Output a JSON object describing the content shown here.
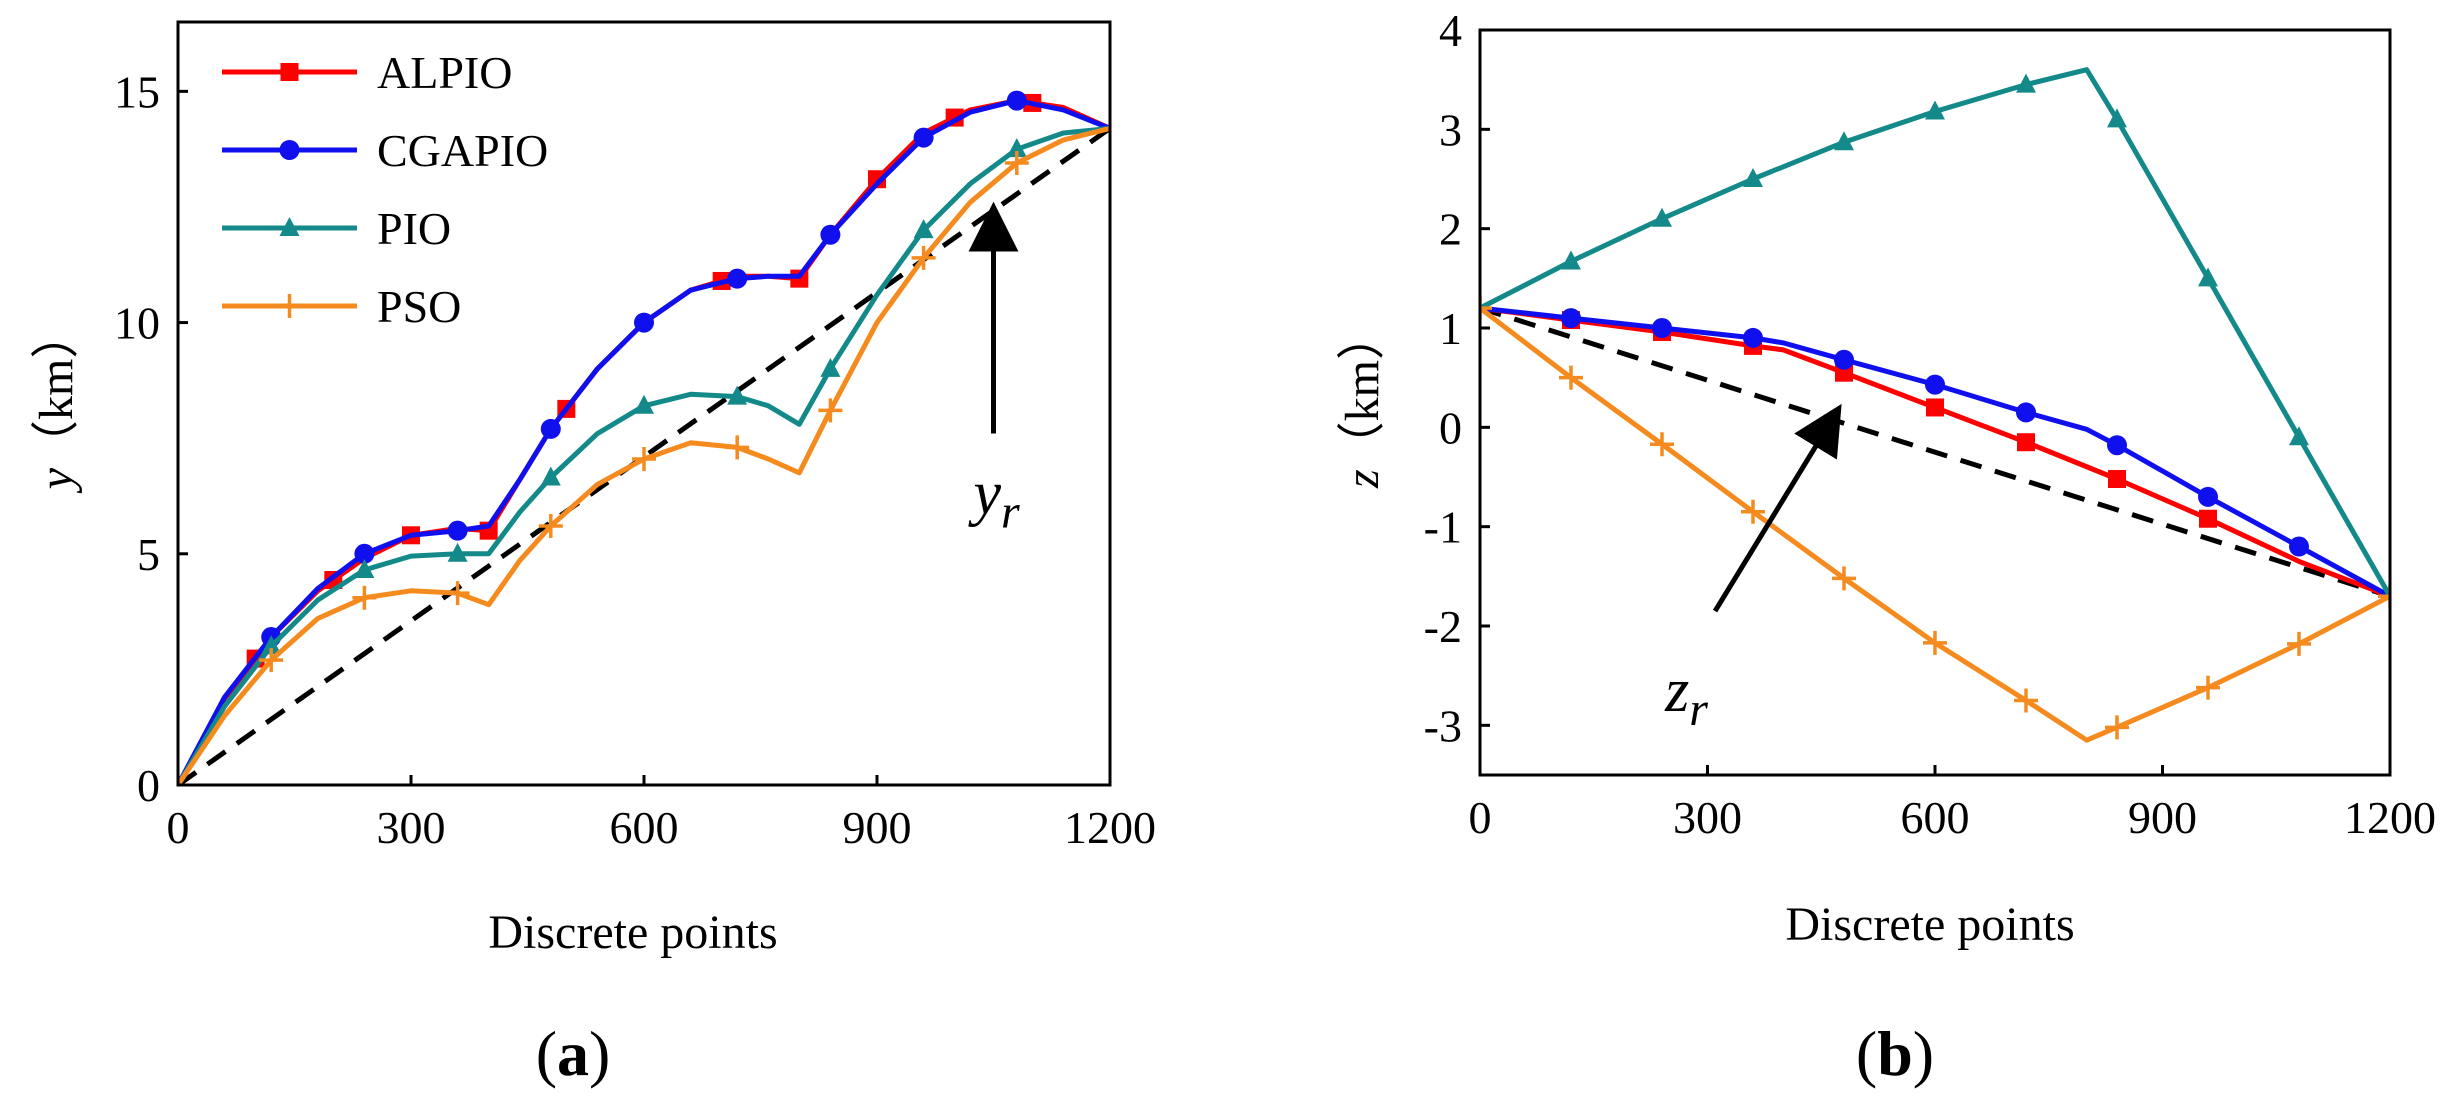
{
  "colors": {
    "ALPIO": "#ff0000",
    "CGAPIO": "#1010ee",
    "PIO": "#13898a",
    "PSO": "#f58b1f",
    "ref": "#000000"
  },
  "chart_data": [
    {
      "id": "a",
      "type": "line",
      "caption_prefix": "(",
      "caption_letter": "a",
      "caption_suffix": ")",
      "xlabel": "Discrete points",
      "ylabel_var": "y",
      "ylabel_unit": "（km）",
      "xlim": [
        0,
        1200
      ],
      "ylim": [
        0,
        16.5
      ],
      "xticks": [
        0,
        300,
        600,
        900,
        1200
      ],
      "yticks": [
        0,
        5,
        10,
        15
      ],
      "legend": {
        "location": "top-left",
        "entries": [
          "ALPIO",
          "CGAPIO",
          "PIO",
          "PSO"
        ]
      },
      "annotation": {
        "var": "y",
        "sub": "r",
        "arrow_from": [
          1050,
          7.6
        ],
        "arrow_to": [
          1050,
          12.4
        ]
      },
      "reference": {
        "name": "y_r",
        "x": [
          0,
          1200
        ],
        "y": [
          0,
          14.2
        ]
      },
      "series": [
        {
          "name": "ALPIO",
          "marker": "square",
          "x": [
            0,
            60,
            120,
            180,
            240,
            300,
            360,
            400,
            440,
            480,
            540,
            600,
            660,
            720,
            760,
            800,
            840,
            900,
            960,
            1020,
            1080,
            1140,
            1200
          ],
          "y": [
            0,
            1.8,
            3.2,
            4.2,
            4.9,
            5.4,
            5.55,
            5.5,
            6.6,
            7.7,
            9.0,
            10.0,
            10.7,
            11.0,
            11.0,
            10.95,
            11.9,
            13.1,
            14.1,
            14.6,
            14.8,
            14.65,
            14.2
          ],
          "marker_x": [
            100,
            200,
            300,
            400,
            500,
            700,
            800,
            900,
            1000,
            1100
          ]
        },
        {
          "name": "CGAPIO",
          "marker": "circle",
          "x": [
            0,
            60,
            120,
            180,
            240,
            300,
            360,
            400,
            440,
            480,
            540,
            600,
            660,
            720,
            760,
            800,
            840,
            900,
            960,
            1020,
            1080,
            1140,
            1200
          ],
          "y": [
            0,
            1.9,
            3.2,
            4.25,
            5.0,
            5.4,
            5.5,
            5.6,
            6.6,
            7.7,
            9.0,
            10.0,
            10.7,
            10.95,
            11.0,
            11.0,
            11.9,
            13.0,
            14.0,
            14.55,
            14.8,
            14.6,
            14.2
          ],
          "marker_x": [
            120,
            240,
            360,
            480,
            600,
            720,
            840,
            960,
            1080
          ]
        },
        {
          "name": "PIO",
          "marker": "triangle",
          "x": [
            0,
            60,
            120,
            180,
            240,
            300,
            360,
            400,
            440,
            480,
            540,
            600,
            660,
            720,
            760,
            800,
            840,
            900,
            960,
            1020,
            1080,
            1140,
            1200
          ],
          "y": [
            0,
            1.7,
            3.0,
            4.0,
            4.65,
            4.95,
            5.0,
            5.0,
            5.9,
            6.65,
            7.6,
            8.2,
            8.45,
            8.4,
            8.2,
            7.8,
            9.0,
            10.6,
            12.0,
            13.0,
            13.75,
            14.1,
            14.2
          ],
          "marker_x": [
            120,
            240,
            360,
            480,
            600,
            720,
            840,
            960,
            1080
          ]
        },
        {
          "name": "PSO",
          "marker": "plus",
          "x": [
            0,
            60,
            120,
            180,
            240,
            300,
            360,
            400,
            440,
            480,
            540,
            600,
            660,
            720,
            760,
            800,
            840,
            900,
            960,
            1020,
            1080,
            1140,
            1200
          ],
          "y": [
            0,
            1.5,
            2.7,
            3.6,
            4.05,
            4.2,
            4.15,
            3.9,
            4.85,
            5.6,
            6.5,
            7.05,
            7.4,
            7.3,
            7.05,
            6.75,
            8.1,
            10.0,
            11.4,
            12.6,
            13.45,
            13.95,
            14.2
          ],
          "marker_x": [
            120,
            240,
            360,
            480,
            600,
            720,
            840,
            960,
            1080
          ]
        }
      ]
    },
    {
      "id": "b",
      "type": "line",
      "caption_prefix": "(",
      "caption_letter": "b",
      "caption_suffix": ")",
      "xlabel": "Discrete points",
      "ylabel_var": "z",
      "ylabel_unit": "（km）",
      "xlim": [
        0,
        1200
      ],
      "ylim": [
        -3.5,
        4
      ],
      "xticks": [
        0,
        300,
        600,
        900,
        1200
      ],
      "yticks": [
        -3,
        -2,
        -1,
        0,
        1,
        2,
        3,
        4
      ],
      "annotation": {
        "var": "z",
        "sub": "r",
        "arrow_from": [
          310,
          -1.85
        ],
        "arrow_to": [
          470,
          0.15
        ]
      },
      "reference": {
        "name": "z_r",
        "x": [
          0,
          1200
        ],
        "y": [
          1.2,
          -1.7
        ]
      },
      "series": [
        {
          "name": "ALPIO",
          "marker": "square",
          "x": [
            0,
            120,
            240,
            360,
            400,
            480,
            600,
            720,
            840,
            960,
            1080,
            1200
          ],
          "y": [
            1.2,
            1.08,
            0.96,
            0.82,
            0.78,
            0.55,
            0.2,
            -0.15,
            -0.52,
            -0.92,
            -1.35,
            -1.7
          ],
          "marker_x": [
            120,
            240,
            360,
            480,
            600,
            720,
            840,
            960
          ]
        },
        {
          "name": "CGAPIO",
          "marker": "circle",
          "x": [
            0,
            120,
            240,
            360,
            400,
            480,
            600,
            720,
            800,
            840,
            960,
            1080,
            1200
          ],
          "y": [
            1.2,
            1.1,
            1.0,
            0.9,
            0.85,
            0.68,
            0.43,
            0.15,
            -0.02,
            -0.18,
            -0.7,
            -1.2,
            -1.7
          ],
          "marker_x": [
            120,
            240,
            360,
            480,
            600,
            720,
            840,
            960,
            1080
          ]
        },
        {
          "name": "PIO",
          "marker": "triangle",
          "x": [
            0,
            120,
            240,
            360,
            480,
            600,
            720,
            800,
            840,
            960,
            1080,
            1200
          ],
          "y": [
            1.2,
            1.67,
            2.1,
            2.5,
            2.87,
            3.18,
            3.45,
            3.6,
            3.1,
            1.5,
            -0.1,
            -1.7
          ],
          "marker_x": [
            120,
            240,
            360,
            480,
            600,
            720,
            840,
            960,
            1080
          ]
        },
        {
          "name": "PSO",
          "marker": "plus",
          "x": [
            0,
            120,
            240,
            360,
            480,
            600,
            720,
            800,
            840,
            960,
            1080,
            1200
          ],
          "y": [
            1.2,
            0.5,
            -0.17,
            -0.85,
            -1.52,
            -2.17,
            -2.75,
            -3.15,
            -3.02,
            -2.62,
            -2.18,
            -1.7
          ],
          "marker_x": [
            0,
            120,
            240,
            360,
            480,
            600,
            720,
            840,
            960,
            1080,
            1200
          ]
        }
      ]
    }
  ]
}
